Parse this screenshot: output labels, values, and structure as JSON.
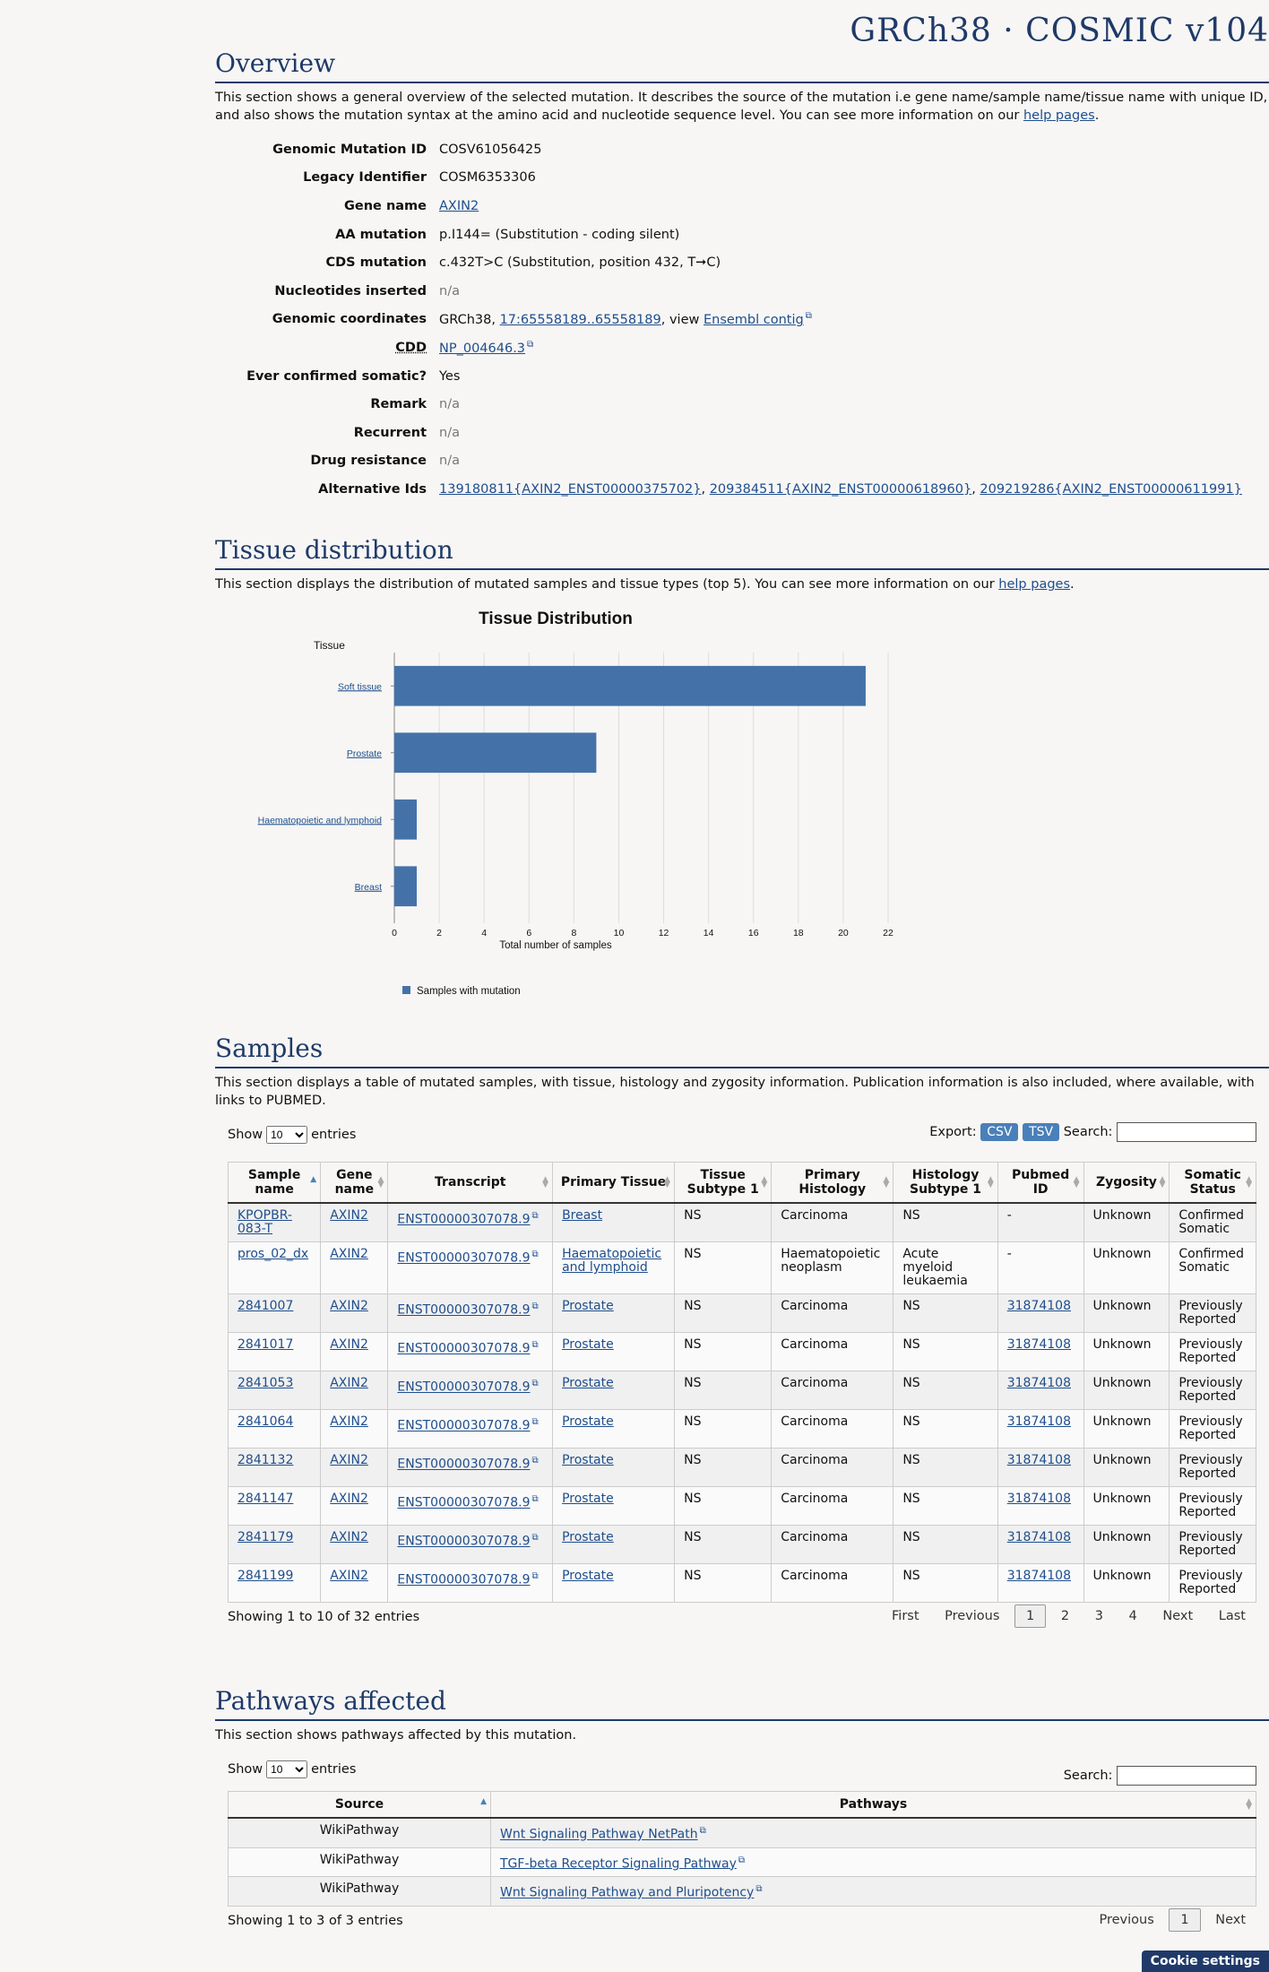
{
  "header": {
    "brand": "GRCh38 · COSMIC v104"
  },
  "overview": {
    "title": "Overview",
    "desc_pre": "This section shows a general overview of the selected mutation. It describes the source of the mutation i.e gene name/sample name/tissue name with unique ID, and also shows the mutation syntax at the amino acid and nucleotide sequence level. You can see more information on our ",
    "desc_link": "help pages",
    "desc_post": ".",
    "fields": {
      "genomic_mutation_id": {
        "label": "Genomic Mutation ID",
        "value": "COSV61056425"
      },
      "legacy_identifier": {
        "label": "Legacy Identifier",
        "value": "COSM6353306"
      },
      "gene_name": {
        "label": "Gene name",
        "value": "AXIN2"
      },
      "aa_mutation": {
        "label": "AA mutation",
        "value": "p.I144= (Substitution - coding silent)"
      },
      "cds_mutation": {
        "label": "CDS mutation",
        "value": "c.432T>C (Substitution, position 432, T➞C)"
      },
      "nucleotides_inserted": {
        "label": "Nucleotides inserted",
        "value": "n/a"
      },
      "genomic_coordinates": {
        "label": "Genomic coordinates",
        "prefix": "GRCh38, ",
        "coord_link": "17:65558189..65558189",
        "mid": ", view ",
        "ensembl_link": "Ensembl contig"
      },
      "cdd": {
        "label": "CDD",
        "value": "NP_004646.3"
      },
      "ever_confirmed_somatic": {
        "label": "Ever confirmed somatic?",
        "value": "Yes"
      },
      "remark": {
        "label": "Remark",
        "value": "n/a"
      },
      "recurrent": {
        "label": "Recurrent",
        "value": "n/a"
      },
      "drug_resistance": {
        "label": "Drug resistance",
        "value": "n/a"
      },
      "alternative_ids": {
        "label": "Alternative Ids",
        "ids": [
          "139180811{AXIN2_ENST00000375702}",
          "209384511{AXIN2_ENST00000618960}",
          "209219286{AXIN2_ENST00000611991}"
        ],
        "sep": ", "
      }
    }
  },
  "tissue": {
    "title": "Tissue distribution",
    "desc_pre": "This section displays the distribution of mutated samples and tissue types (top 5). You can see more information on our ",
    "desc_link": "help pages",
    "desc_post": "."
  },
  "chart_data": {
    "type": "bar",
    "orientation": "horizontal",
    "title": "Tissue Distribution",
    "ylabel": "Tissue",
    "xlabel": "Total number of samples",
    "categories": [
      "Soft tissue",
      "Prostate",
      "Haematopoietic and lymphoid",
      "Breast"
    ],
    "series": [
      {
        "name": "Samples with mutation",
        "values": [
          21,
          9,
          1,
          1
        ],
        "color": "#4472a8"
      }
    ],
    "xlim": [
      0,
      22
    ],
    "xticks": [
      0,
      2,
      4,
      6,
      8,
      10,
      12,
      14,
      16,
      18,
      20,
      22
    ],
    "grid": true,
    "legend_position": "bottom-left"
  },
  "samples": {
    "title": "Samples",
    "desc": "This section displays a table of mutated samples, with tissue, histology and zygosity information. Publication information is also included, where available, with links to PUBMED.",
    "show": "Show",
    "entries": "entries",
    "length_value": "10",
    "export_label": "Export:",
    "csv": "CSV",
    "tsv": "TSV",
    "search_label": "Search:",
    "columns": [
      "Sample name",
      "Gene name",
      "Transcript",
      "Primary Tissue",
      "Tissue Subtype 1",
      "Primary Histology",
      "Histology Subtype 1",
      "Pubmed ID",
      "Zygosity",
      "Somatic Status"
    ],
    "rows": [
      [
        "KPOPBR-083-T",
        "AXIN2",
        "ENST00000307078.9",
        "Breast",
        "NS",
        "Carcinoma",
        "NS",
        "-",
        "Unknown",
        "Confirmed Somatic"
      ],
      [
        "pros_02_dx",
        "AXIN2",
        "ENST00000307078.9",
        "Haematopoietic and lymphoid",
        "NS",
        "Haematopoietic neoplasm",
        "Acute myeloid leukaemia",
        "-",
        "Unknown",
        "Confirmed Somatic"
      ],
      [
        "2841007",
        "AXIN2",
        "ENST00000307078.9",
        "Prostate",
        "NS",
        "Carcinoma",
        "NS",
        "31874108",
        "Unknown",
        "Previously Reported"
      ],
      [
        "2841017",
        "AXIN2",
        "ENST00000307078.9",
        "Prostate",
        "NS",
        "Carcinoma",
        "NS",
        "31874108",
        "Unknown",
        "Previously Reported"
      ],
      [
        "2841053",
        "AXIN2",
        "ENST00000307078.9",
        "Prostate",
        "NS",
        "Carcinoma",
        "NS",
        "31874108",
        "Unknown",
        "Previously Reported"
      ],
      [
        "2841064",
        "AXIN2",
        "ENST00000307078.9",
        "Prostate",
        "NS",
        "Carcinoma",
        "NS",
        "31874108",
        "Unknown",
        "Previously Reported"
      ],
      [
        "2841132",
        "AXIN2",
        "ENST00000307078.9",
        "Prostate",
        "NS",
        "Carcinoma",
        "NS",
        "31874108",
        "Unknown",
        "Previously Reported"
      ],
      [
        "2841147",
        "AXIN2",
        "ENST00000307078.9",
        "Prostate",
        "NS",
        "Carcinoma",
        "NS",
        "31874108",
        "Unknown",
        "Previously Reported"
      ],
      [
        "2841179",
        "AXIN2",
        "ENST00000307078.9",
        "Prostate",
        "NS",
        "Carcinoma",
        "NS",
        "31874108",
        "Unknown",
        "Previously Reported"
      ],
      [
        "2841199",
        "AXIN2",
        "ENST00000307078.9",
        "Prostate",
        "NS",
        "Carcinoma",
        "NS",
        "31874108",
        "Unknown",
        "Previously Reported"
      ]
    ],
    "info": "Showing 1 to 10 of 32 entries",
    "pager": {
      "first": "First",
      "previous": "Previous",
      "pages": [
        "1",
        "2",
        "3",
        "4"
      ],
      "current": "1",
      "next": "Next",
      "last": "Last"
    }
  },
  "pathways": {
    "title": "Pathways affected",
    "desc": "This section shows pathways affected by this mutation.",
    "show": "Show",
    "entries": "entries",
    "length_value": "10",
    "search_label": "Search:",
    "columns": [
      "Source",
      "Pathways"
    ],
    "rows": [
      [
        "WikiPathway",
        "Wnt Signaling Pathway NetPath"
      ],
      [
        "WikiPathway",
        "TGF-beta Receptor Signaling Pathway"
      ],
      [
        "WikiPathway",
        "Wnt Signaling Pathway and Pluripotency"
      ]
    ],
    "info": "Showing 1 to 3 of 3 entries",
    "pager": {
      "previous": "Previous",
      "current": "1",
      "next": "Next"
    }
  },
  "cookie": {
    "label": "Cookie settings"
  }
}
